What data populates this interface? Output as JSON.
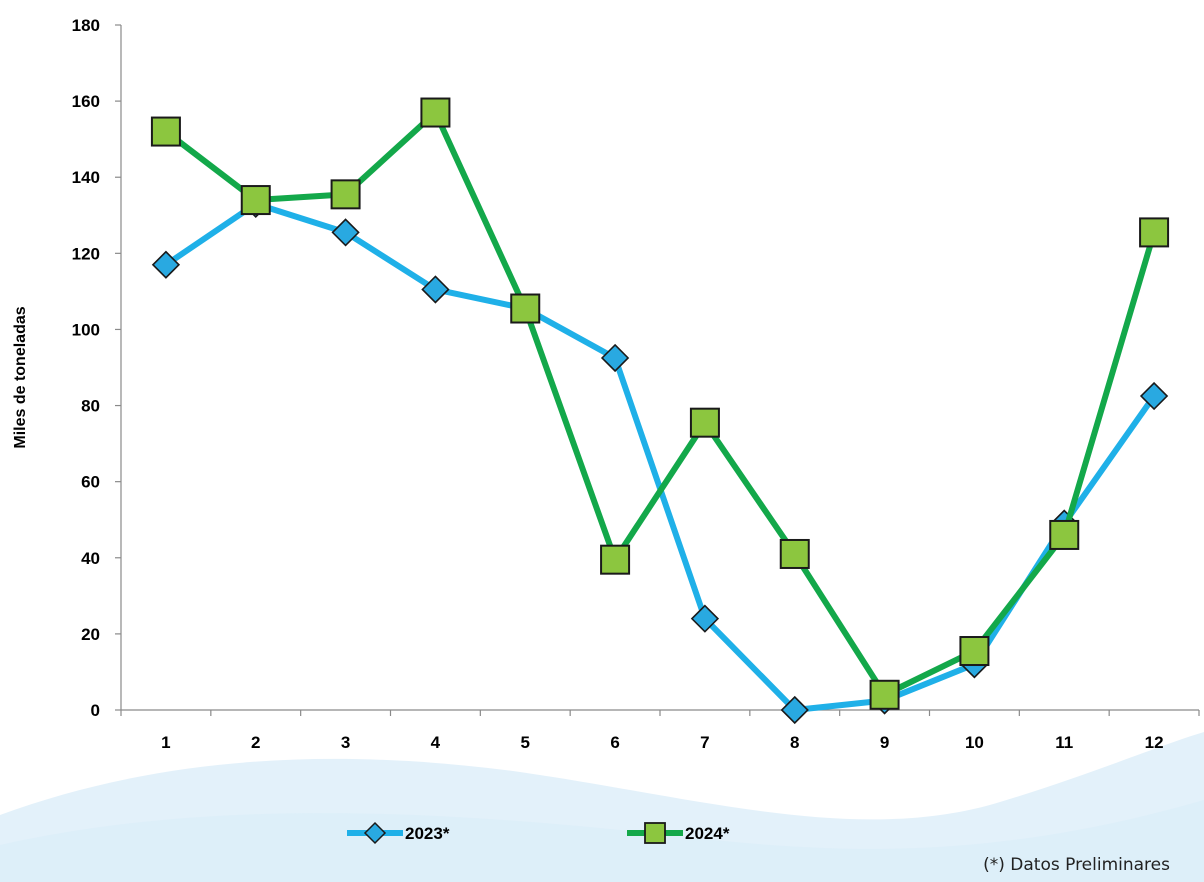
{
  "chart_data": {
    "type": "line",
    "title": "",
    "xlabel": "",
    "ylabel": "Miles de toneladas",
    "categories": [
      "1",
      "2",
      "3",
      "4",
      "5",
      "6",
      "7",
      "8",
      "9",
      "10",
      "11",
      "12"
    ],
    "ylim": [
      0,
      180
    ],
    "yticks": [
      "0",
      "20",
      "40",
      "60",
      "80",
      "100",
      "120",
      "140",
      "160",
      "180"
    ],
    "grid": false,
    "legend_position": "bottom",
    "series": [
      {
        "name": "2023*",
        "color": "#1fb0e8",
        "marker": "diamond",
        "marker_fill": "#29a9e1",
        "values": [
          117,
          133,
          125.5,
          110.5,
          105.5,
          92.5,
          24,
          0,
          2.5,
          12,
          49,
          82.5
        ]
      },
      {
        "name": "2024*",
        "color": "#13a84a",
        "marker": "square",
        "marker_fill": "#8cc63f",
        "values": [
          152,
          134,
          135.5,
          157,
          105.5,
          39.5,
          75.5,
          41,
          4,
          15.5,
          46,
          125.5
        ]
      }
    ]
  },
  "note": "(*) Datos Preliminares",
  "background": {
    "wave_color": "#d9ecf8"
  }
}
